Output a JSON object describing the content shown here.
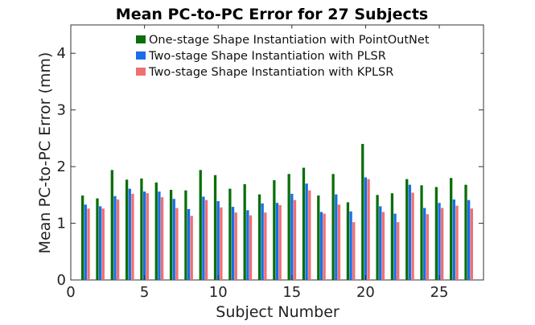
{
  "chart_data": {
    "type": "bar",
    "title": "Mean PC-to-PC Error for 27 Subjects",
    "xlabel": "Subject Number",
    "ylabel": "Mean PC-to-PC Error (mm)",
    "xlim": [
      0,
      28
    ],
    "ylim": [
      0,
      4.5
    ],
    "xticks": [
      0,
      5,
      10,
      15,
      20,
      25
    ],
    "yticks": [
      0,
      1,
      2,
      3,
      4
    ],
    "grid": false,
    "legend_position": "top-right",
    "categories": [
      1,
      2,
      3,
      4,
      5,
      6,
      7,
      8,
      9,
      10,
      11,
      12,
      13,
      14,
      15,
      16,
      17,
      18,
      19,
      20,
      21,
      22,
      23,
      24,
      25,
      26,
      27
    ],
    "series": [
      {
        "name": "One-stage Shape Instantiation with PointOutNet",
        "color": "#0b6e0b",
        "values": [
          1.49,
          1.44,
          1.94,
          1.77,
          1.79,
          1.72,
          1.59,
          1.58,
          1.94,
          1.85,
          1.61,
          1.69,
          1.51,
          1.76,
          1.87,
          1.98,
          1.49,
          1.87,
          1.37,
          2.4,
          1.5,
          1.53,
          1.78,
          1.67,
          1.64,
          1.8,
          1.68
        ]
      },
      {
        "name": "Two-stage Shape Instantiation with PLSR",
        "color": "#1a6ee8",
        "values": [
          1.33,
          1.3,
          1.48,
          1.61,
          1.56,
          1.56,
          1.43,
          1.25,
          1.47,
          1.39,
          1.29,
          1.23,
          1.35,
          1.36,
          1.52,
          1.7,
          1.2,
          1.51,
          1.21,
          1.81,
          1.3,
          1.17,
          1.68,
          1.27,
          1.36,
          1.42,
          1.41
        ]
      },
      {
        "name": "Two-stage Shape Instantiation with KPLSR",
        "color": "#f07070",
        "values": [
          1.26,
          1.26,
          1.42,
          1.52,
          1.53,
          1.46,
          1.27,
          1.13,
          1.41,
          1.28,
          1.19,
          1.14,
          1.19,
          1.32,
          1.41,
          1.58,
          1.17,
          1.33,
          1.02,
          1.78,
          1.2,
          1.02,
          1.54,
          1.16,
          1.27,
          1.31,
          1.26
        ]
      }
    ]
  }
}
